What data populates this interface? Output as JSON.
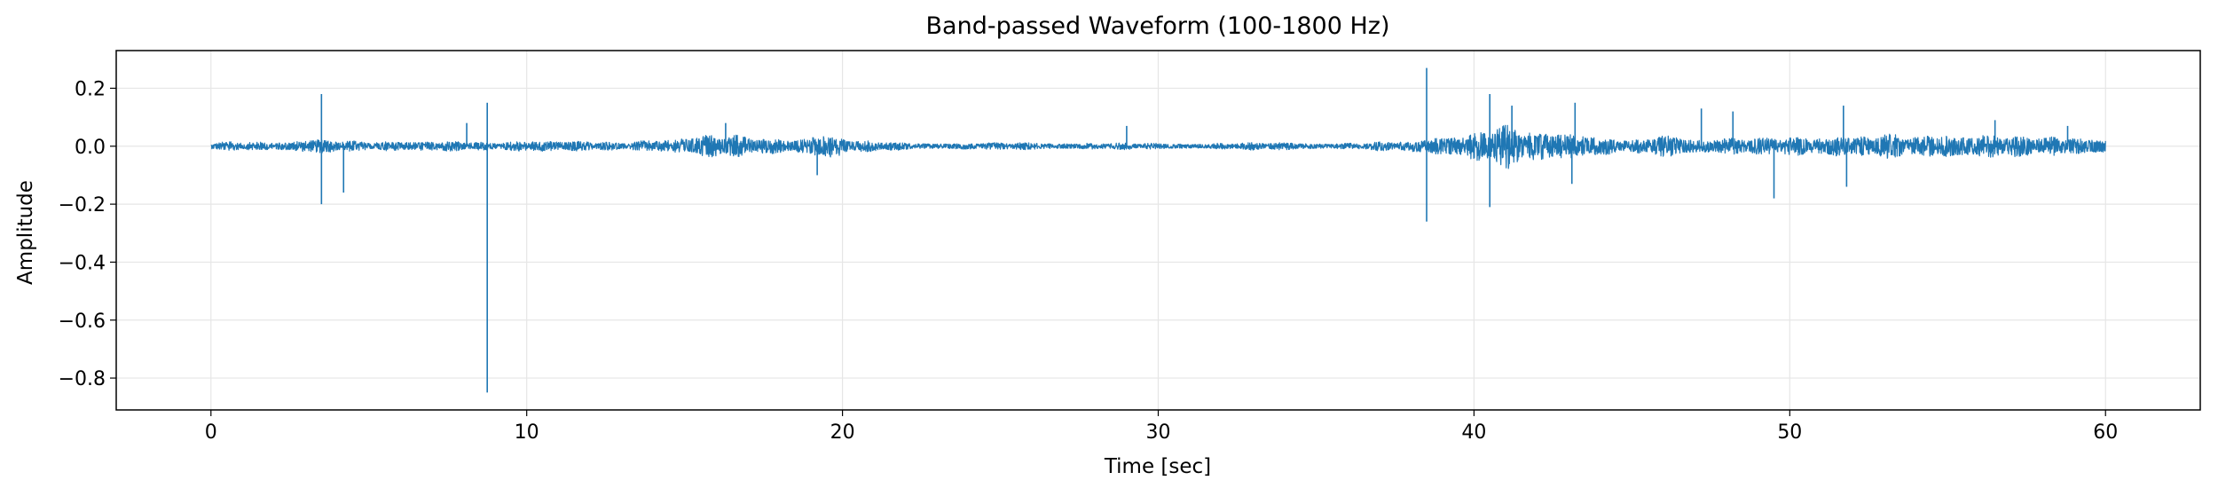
{
  "chart_data": {
    "type": "line",
    "title": "Band-passed Waveform (100-1800 Hz)",
    "xlabel": "Time [sec]",
    "ylabel": "Amplitude",
    "xlim": [
      -3,
      63
    ],
    "ylim": [
      -0.91,
      0.33
    ],
    "xticks": [
      0,
      10,
      20,
      30,
      40,
      50,
      60
    ],
    "yticks": [
      0.2,
      0.0,
      -0.2,
      -0.4,
      -0.6,
      -0.8
    ],
    "xtick_labels": [
      "0",
      "10",
      "20",
      "30",
      "40",
      "50",
      "60"
    ],
    "ytick_labels": [
      "0.2",
      "0.0",
      "−0.2",
      "−0.4",
      "−0.6",
      "−0.8"
    ],
    "grid": true,
    "line_color": "#1f77b4",
    "series": [
      {
        "color": "#1f77b4",
        "envelope": {
          "t": [
            0,
            2,
            3,
            5,
            6.5,
            7.5,
            9,
            10.5,
            11.5,
            13,
            15.3,
            16.5,
            17.5,
            18.5,
            19.3,
            20.5,
            22,
            24,
            26,
            28,
            30,
            32,
            34,
            36,
            38,
            38.6,
            40.3,
            41,
            42,
            43,
            44,
            45,
            46,
            47,
            48,
            49,
            50,
            51,
            51.5,
            52,
            53,
            54,
            55,
            56,
            57,
            58,
            59,
            60
          ],
          "amp": [
            0.015,
            0.018,
            0.03,
            0.015,
            0.025,
            0.02,
            0.012,
            0.03,
            0.02,
            0.012,
            0.045,
            0.04,
            0.03,
            0.035,
            0.055,
            0.02,
            0.015,
            0.012,
            0.015,
            0.012,
            0.012,
            0.012,
            0.015,
            0.012,
            0.02,
            0.04,
            0.06,
            0.08,
            0.05,
            0.07,
            0.04,
            0.02,
            0.045,
            0.035,
            0.035,
            0.03,
            0.035,
            0.04,
            0.06,
            0.04,
            0.045,
            0.035,
            0.055,
            0.05,
            0.04,
            0.035,
            0.04,
            0.035
          ]
        },
        "spikes": [
          {
            "t": 3.5,
            "y": 0.18
          },
          {
            "t": 3.5,
            "y": -0.2
          },
          {
            "t": 4.2,
            "y": -0.16
          },
          {
            "t": 8.1,
            "y": 0.08
          },
          {
            "t": 8.75,
            "y": 0.15
          },
          {
            "t": 8.75,
            "y": -0.85
          },
          {
            "t": 16.3,
            "y": 0.08
          },
          {
            "t": 19.2,
            "y": -0.1
          },
          {
            "t": 29.0,
            "y": 0.07
          },
          {
            "t": 38.5,
            "y": 0.27
          },
          {
            "t": 38.5,
            "y": -0.26
          },
          {
            "t": 40.5,
            "y": 0.18
          },
          {
            "t": 40.5,
            "y": -0.21
          },
          {
            "t": 41.2,
            "y": 0.14
          },
          {
            "t": 43.2,
            "y": 0.15
          },
          {
            "t": 43.1,
            "y": -0.13
          },
          {
            "t": 47.2,
            "y": 0.13
          },
          {
            "t": 48.2,
            "y": 0.12
          },
          {
            "t": 49.5,
            "y": -0.18
          },
          {
            "t": 51.7,
            "y": 0.14
          },
          {
            "t": 51.8,
            "y": -0.14
          },
          {
            "t": 56.5,
            "y": 0.09
          },
          {
            "t": 58.8,
            "y": 0.07
          }
        ]
      }
    ]
  }
}
